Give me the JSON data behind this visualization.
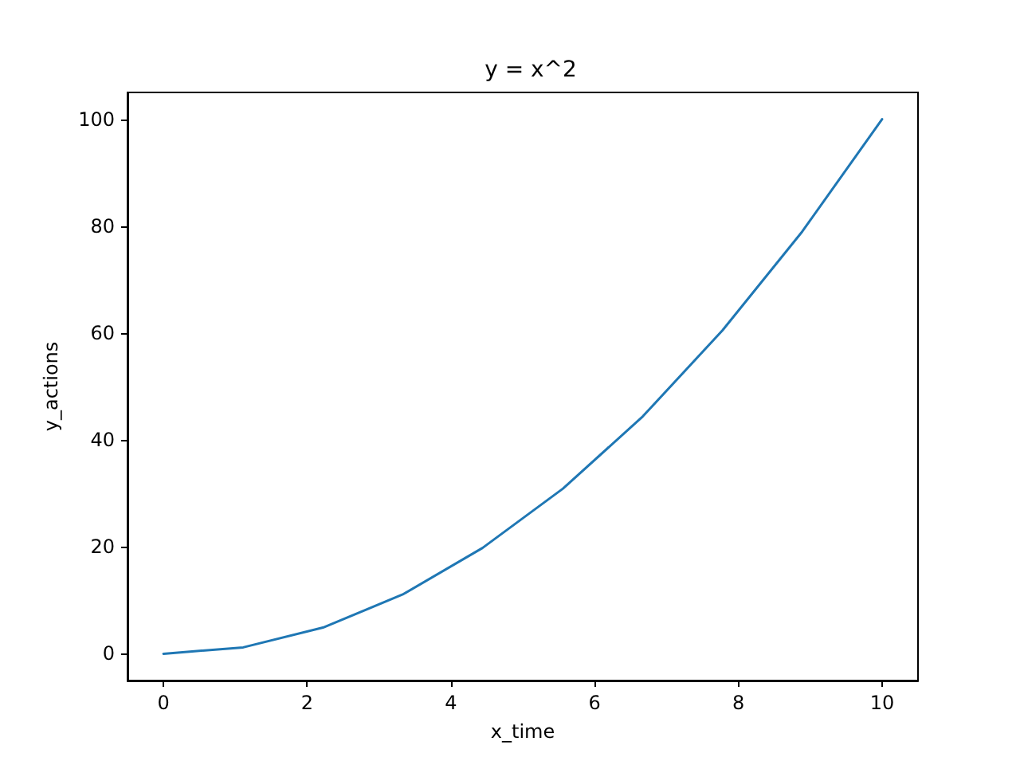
{
  "chart_data": {
    "type": "line",
    "title": "y = x^2",
    "xlabel": "x_time",
    "ylabel": "y_actions",
    "x": [
      0,
      1.11,
      2.22,
      3.33,
      4.44,
      5.56,
      6.67,
      7.78,
      8.89,
      10
    ],
    "series": [
      {
        "color": "#1f77b4",
        "values": [
          0,
          1.2,
          4.9,
          11.1,
          19.8,
          30.9,
          44.4,
          60.5,
          79,
          100
        ]
      }
    ],
    "xlim": [
      -0.5,
      10.5
    ],
    "xticks": [
      0,
      2,
      4,
      6,
      8,
      10
    ],
    "ylim": [
      -5,
      105
    ],
    "yticks": [
      0,
      20,
      40,
      60,
      80,
      100
    ],
    "marker": "none",
    "line_style": "solid"
  }
}
